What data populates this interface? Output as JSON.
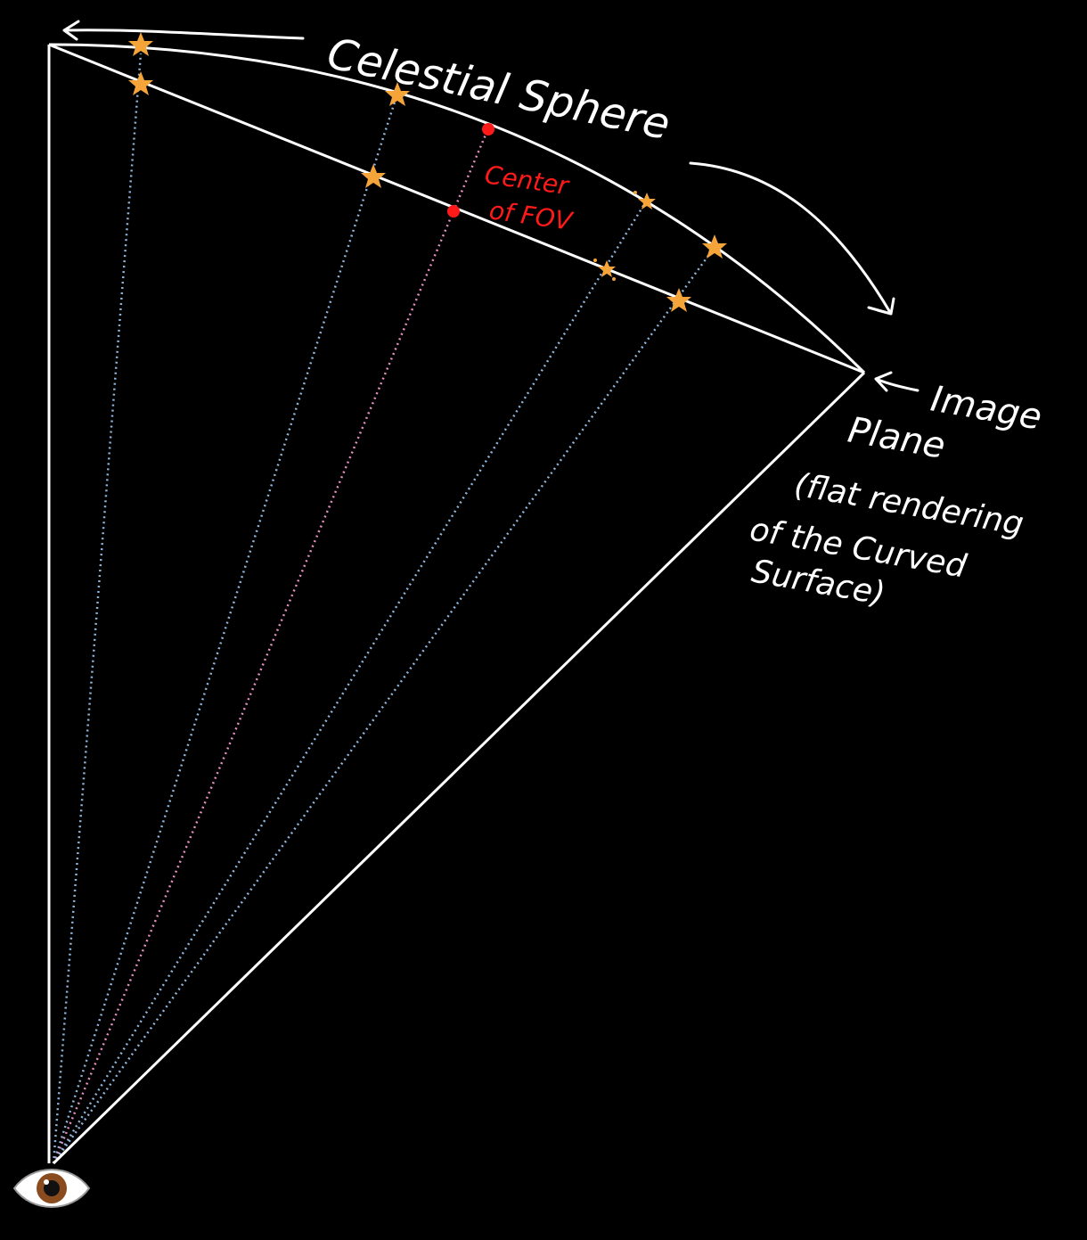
{
  "labels": {
    "celestial_sphere": "Celestial Sphere",
    "center_line1": "Center",
    "center_line2": "of FOV",
    "image_line1": "Image",
    "image_line2": "Plane",
    "image_line3": "(flat rendering",
    "image_line4": "of the Curved",
    "image_line5": "Surface)"
  },
  "colors": {
    "background": "#000000",
    "line": "#ffffff",
    "ray": "#8fb4d9",
    "center_ray": "#e38fc0",
    "star": "#f5a43a",
    "center_point": "#ff1a1a",
    "eye_iris": "#8a4b1f"
  },
  "icons": {
    "star": "star-icon",
    "eye": "eye-icon"
  }
}
